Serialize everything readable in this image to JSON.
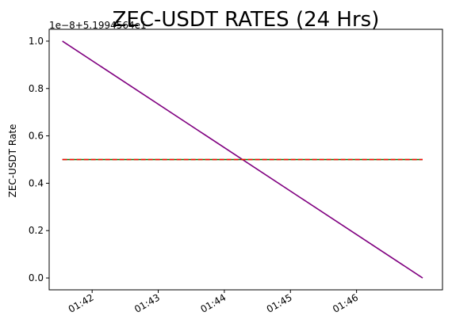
{
  "chart_data": {
    "type": "line",
    "title": "ZEC-USDT RATES (24 Hrs)",
    "xlabel": "",
    "ylabel": "ZEC-USDT Rate",
    "y_offset_label": "1e−8+5.1994564e1",
    "x_ticks": [
      "01:42",
      "01:43",
      "01:44",
      "01:45",
      "01:46"
    ],
    "x_tick_values": [
      1.0,
      2.0,
      3.0,
      4.0,
      5.0
    ],
    "y_ticks": [
      "0.0",
      "0.2",
      "0.4",
      "0.6",
      "0.8",
      "1.0"
    ],
    "y_tick_values": [
      0.0,
      0.2,
      0.4,
      0.6,
      0.8,
      1.0
    ],
    "xlim": [
      0.35,
      6.3
    ],
    "ylim": [
      -0.05,
      1.05
    ],
    "series": [
      {
        "color": "#800080",
        "style": "solid",
        "x": [
          0.55,
          6.0
        ],
        "y": [
          1.0,
          0.0
        ]
      },
      {
        "color": "#008000",
        "style": "solid",
        "x": [
          0.55,
          6.0
        ],
        "y": [
          0.5,
          0.5
        ]
      },
      {
        "color": "#ff0000",
        "style": "dashed",
        "x": [
          0.55,
          6.0
        ],
        "y": [
          0.5,
          0.5
        ]
      }
    ]
  }
}
